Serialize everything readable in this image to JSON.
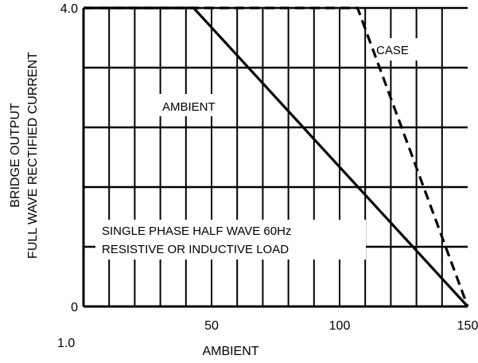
{
  "chart_data": {
    "type": "line",
    "ylabel_lines": [
      "BRIDGE OUTPUT",
      "FULL WAVE RECTIFIED CURRENT"
    ],
    "xlabel": "AMBIENT",
    "corner_label": "1.0",
    "xlim": [
      0,
      150
    ],
    "ylim": [
      0,
      4.0
    ],
    "x_tick_labels": [
      {
        "value": 50,
        "label": "50"
      },
      {
        "value": 100,
        "label": "100"
      },
      {
        "value": 150,
        "label": "150"
      }
    ],
    "y_tick_labels": [
      {
        "value": 0,
        "label": "0"
      },
      {
        "value": 4.0,
        "label": "4.0"
      }
    ],
    "grid": {
      "x_step": 10,
      "y_levels": [
        0.8,
        1.6,
        2.4,
        3.2,
        4.0
      ]
    },
    "series": [
      {
        "name": "AMBIENT",
        "style": "solid",
        "x": [
          0,
          43,
          150
        ],
        "y": [
          4.0,
          4.0,
          0
        ]
      },
      {
        "name": "CASE",
        "style": "dashed",
        "x": [
          0,
          107,
          150
        ],
        "y": [
          4.0,
          4.0,
          0
        ]
      }
    ],
    "annotations": [
      {
        "text": "SINGLE PHASE HALF WAVE  60Hz"
      },
      {
        "text": "RESISTIVE OR INDUCTIVE LOAD"
      }
    ],
    "colors": {
      "line": "#000000",
      "background": "#ffffff"
    }
  }
}
